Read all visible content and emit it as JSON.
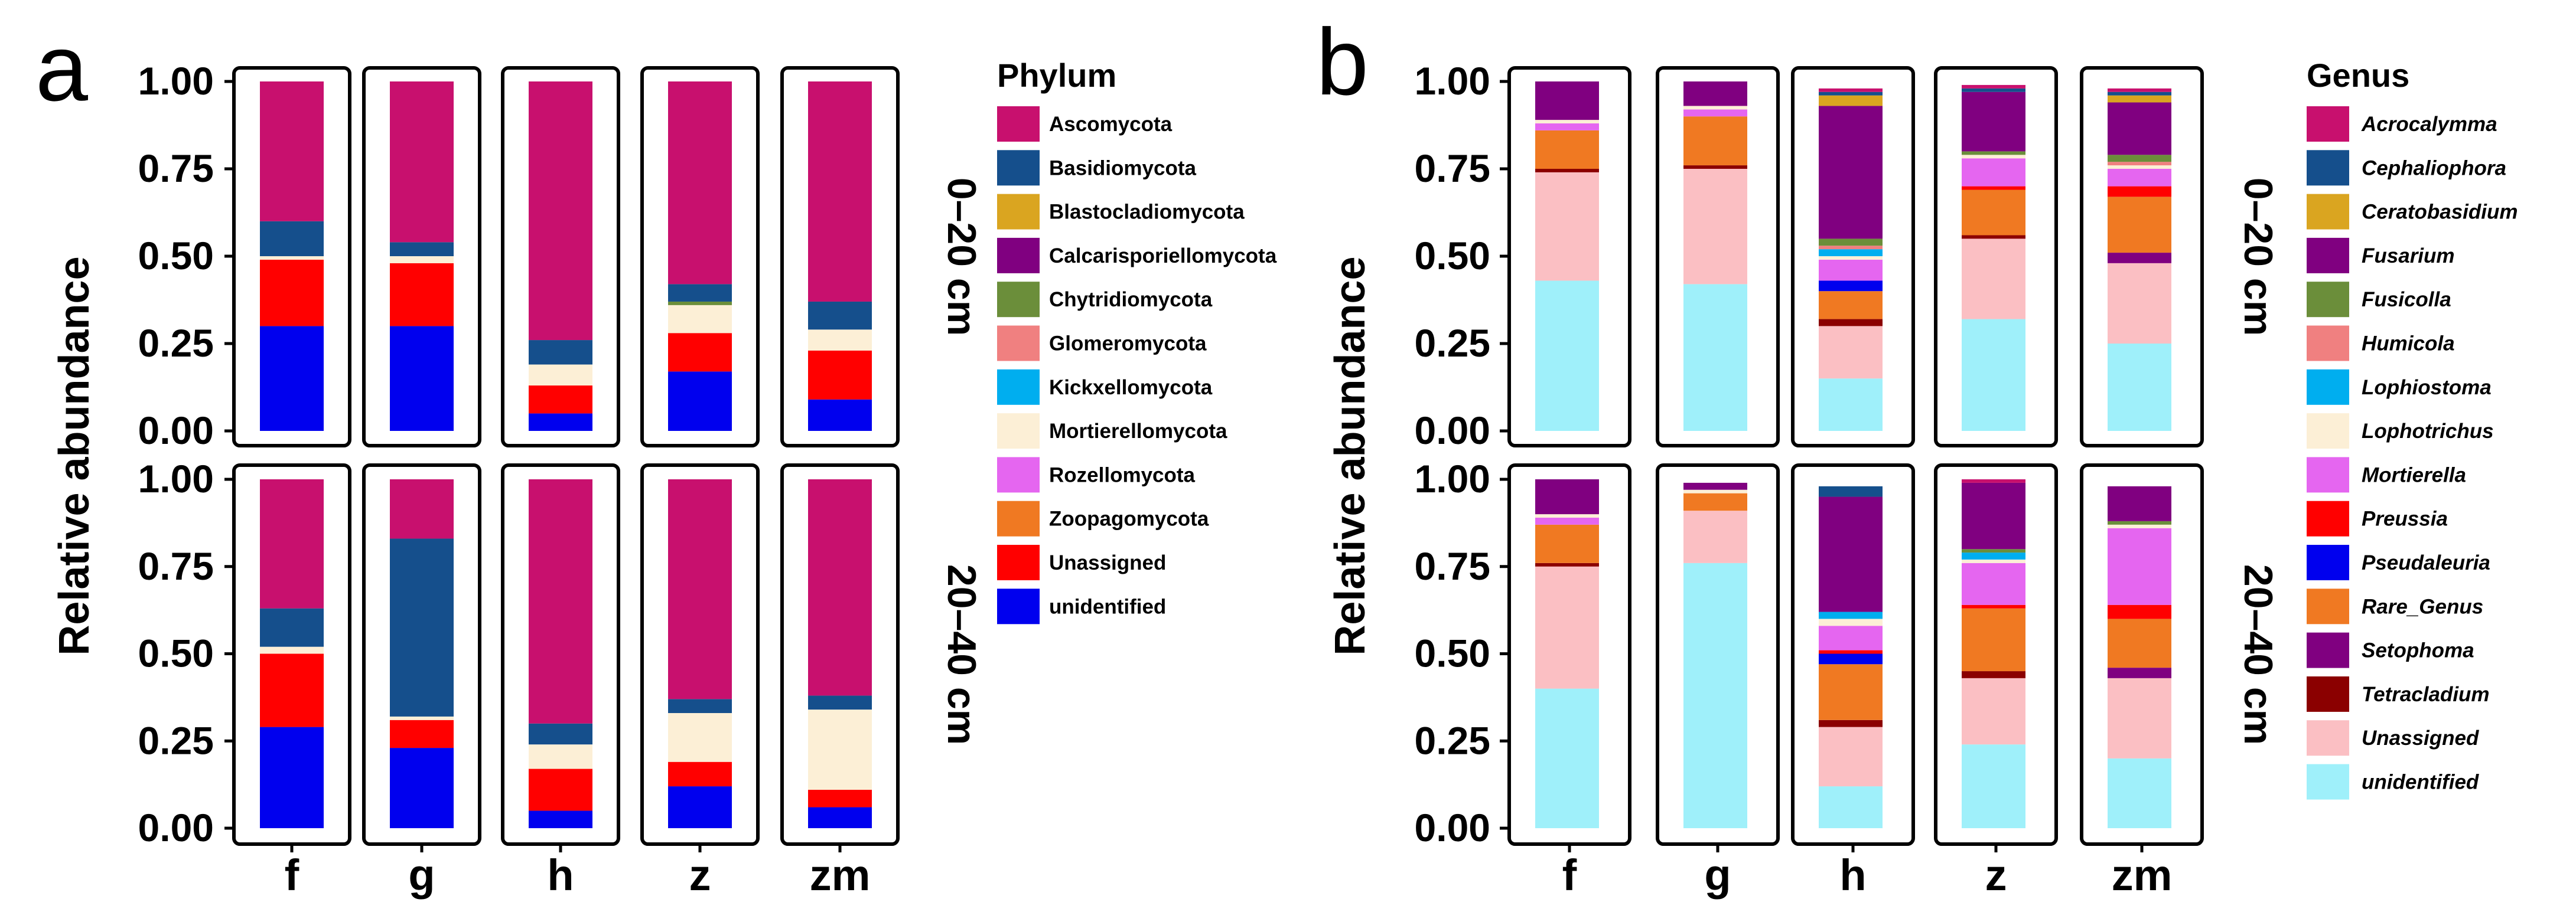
{
  "chart_data": [
    {
      "type": "bar",
      "stacked": true,
      "panel_letter": "a",
      "ylabel": "Relative abundance",
      "ylim": [
        0,
        1
      ],
      "yticks": [
        "0.00",
        "0.25",
        "0.50",
        "0.75",
        "1.00"
      ],
      "categories": [
        "f",
        "g",
        "h",
        "z",
        "zm"
      ],
      "rows": [
        "0–20 cm",
        "20–40 cm"
      ],
      "legend_title": "Phylum",
      "legend_italic": false,
      "legend_position": "right",
      "series": [
        {
          "name": "unidentified",
          "color": "#0000ee",
          "values": [
            [
              0.3,
              0.3,
              0.05,
              0.17,
              0.09
            ],
            [
              0.29,
              0.23,
              0.05,
              0.12,
              0.06
            ]
          ]
        },
        {
          "name": "Unassigned",
          "color": "#ff0000",
          "values": [
            [
              0.19,
              0.18,
              0.08,
              0.11,
              0.14
            ],
            [
              0.21,
              0.08,
              0.12,
              0.07,
              0.05
            ]
          ]
        },
        {
          "name": "Zoopagomycota",
          "color": "#f07922",
          "values": [
            [
              0,
              0,
              0,
              0,
              0
            ],
            [
              0,
              0,
              0,
              0,
              0
            ]
          ]
        },
        {
          "name": "Rozellomycota",
          "color": "#e566f0",
          "values": [
            [
              0,
              0,
              0,
              0,
              0
            ],
            [
              0,
              0,
              0,
              0,
              0
            ]
          ]
        },
        {
          "name": "Mortierellomycota",
          "color": "#fcefd6",
          "values": [
            [
              0.01,
              0.02,
              0.06,
              0.08,
              0.06
            ],
            [
              0.02,
              0.01,
              0.07,
              0.14,
              0.23
            ]
          ]
        },
        {
          "name": "Kickxellomycota",
          "color": "#00aeef",
          "values": [
            [
              0,
              0,
              0,
              0,
              0
            ],
            [
              0,
              0,
              0,
              0,
              0
            ]
          ]
        },
        {
          "name": "Glomeromycota",
          "color": "#f08080",
          "values": [
            [
              0,
              0,
              0,
              0,
              0
            ],
            [
              0,
              0,
              0,
              0,
              0
            ]
          ]
        },
        {
          "name": "Chytridiomycota",
          "color": "#6b8e3a",
          "values": [
            [
              0,
              0,
              0,
              0.01,
              0
            ],
            [
              0,
              0,
              0,
              0,
              0
            ]
          ]
        },
        {
          "name": "Calcarisporiellomycota",
          "color": "#800080",
          "values": [
            [
              0,
              0,
              0,
              0,
              0
            ],
            [
              0,
              0,
              0,
              0,
              0
            ]
          ]
        },
        {
          "name": "Blastocladiomycota",
          "color": "#daa520",
          "values": [
            [
              0,
              0,
              0,
              0,
              0
            ],
            [
              0,
              0,
              0,
              0,
              0
            ]
          ]
        },
        {
          "name": "Basidiomycota",
          "color": "#154f8c",
          "values": [
            [
              0.1,
              0.04,
              0.07,
              0.05,
              0.08
            ],
            [
              0.11,
              0.51,
              0.06,
              0.04,
              0.04
            ]
          ]
        },
        {
          "name": "Ascomycota",
          "color": "#c8106e",
          "values": [
            [
              0.4,
              0.46,
              0.74,
              0.58,
              0.63
            ],
            [
              0.37,
              0.17,
              0.7,
              0.63,
              0.62
            ]
          ]
        }
      ]
    },
    {
      "type": "bar",
      "stacked": true,
      "panel_letter": "b",
      "ylabel": "Relative abundance",
      "ylim": [
        0,
        1
      ],
      "yticks": [
        "0.00",
        "0.25",
        "0.50",
        "0.75",
        "1.00"
      ],
      "categories": [
        "f",
        "g",
        "h",
        "z",
        "zm"
      ],
      "rows": [
        "0–20 cm",
        "20–40 cm"
      ],
      "legend_title": "Genus",
      "legend_italic": true,
      "legend_position": "right",
      "series": [
        {
          "name": "unidentified",
          "color": "#9ff0fa",
          "values": [
            [
              0.43,
              0.42,
              0.15,
              0.32,
              0.25
            ],
            [
              0.4,
              0.76,
              0.12,
              0.24,
              0.2
            ]
          ]
        },
        {
          "name": "Unassigned",
          "color": "#fbbfc3",
          "values": [
            [
              0.31,
              0.33,
              0.15,
              0.23,
              0.23
            ],
            [
              0.35,
              0.15,
              0.17,
              0.19,
              0.23
            ]
          ]
        },
        {
          "name": "Tetracladium",
          "color": "#8b0000",
          "values": [
            [
              0.01,
              0.01,
              0.02,
              0.01,
              0
            ],
            [
              0.01,
              0,
              0.02,
              0.02,
              0
            ]
          ]
        },
        {
          "name": "Setophoma",
          "color": "#800080",
          "values": [
            [
              0,
              0,
              0,
              0,
              0.03
            ],
            [
              0,
              0,
              0,
              0,
              0.03
            ]
          ]
        },
        {
          "name": "Rare_Genus",
          "color": "#f07922",
          "values": [
            [
              0.11,
              0.14,
              0.08,
              0.13,
              0.16
            ],
            [
              0.11,
              0.05,
              0.16,
              0.18,
              0.14
            ]
          ]
        },
        {
          "name": "Pseudaleuria",
          "color": "#0000ee",
          "values": [
            [
              0,
              0,
              0.03,
              0,
              0
            ],
            [
              0,
              0,
              0.03,
              0,
              0
            ]
          ]
        },
        {
          "name": "Preussia",
          "color": "#ff0000",
          "values": [
            [
              0,
              0,
              0,
              0.01,
              0.03
            ],
            [
              0,
              0,
              0.01,
              0.01,
              0.04
            ]
          ]
        },
        {
          "name": "Mortierella",
          "color": "#e566f0",
          "values": [
            [
              0.02,
              0.02,
              0.06,
              0.08,
              0.05
            ],
            [
              0.02,
              0,
              0.07,
              0.12,
              0.22
            ]
          ]
        },
        {
          "name": "Lophotrichus",
          "color": "#fcefd6",
          "values": [
            [
              0.01,
              0.01,
              0.01,
              0.01,
              0.01
            ],
            [
              0.01,
              0.01,
              0.02,
              0.01,
              0.01
            ]
          ]
        },
        {
          "name": "Lophiostoma",
          "color": "#00aeef",
          "values": [
            [
              0,
              0,
              0.02,
              0,
              0
            ],
            [
              0,
              0,
              0.02,
              0.02,
              0
            ]
          ]
        },
        {
          "name": "Humicola",
          "color": "#f08080",
          "values": [
            [
              0,
              0,
              0.01,
              0,
              0.01
            ],
            [
              0,
              0,
              0,
              0,
              0
            ]
          ]
        },
        {
          "name": "Fusicolla",
          "color": "#6b8e3a",
          "values": [
            [
              0,
              0,
              0.02,
              0.01,
              0.02
            ],
            [
              0,
              0,
              0,
              0.01,
              0.01
            ]
          ]
        },
        {
          "name": "Fusarium",
          "color": "#800080",
          "values": [
            [
              0.11,
              0.07,
              0.38,
              0.17,
              0.15
            ],
            [
              0.1,
              0.02,
              0.33,
              0.19,
              0.1
            ]
          ]
        },
        {
          "name": "Ceratobasidium",
          "color": "#daa520",
          "values": [
            [
              0,
              0,
              0.03,
              0,
              0.02
            ],
            [
              0,
              0,
              0,
              0,
              0
            ]
          ]
        },
        {
          "name": "Cephaliophora",
          "color": "#154f8c",
          "values": [
            [
              0,
              0,
              0.01,
              0.01,
              0.01
            ],
            [
              0,
              0,
              0.03,
              0,
              0
            ]
          ]
        },
        {
          "name": "Acrocalymma",
          "color": "#c8106e",
          "values": [
            [
              0,
              0,
              0.01,
              0.01,
              0.01
            ],
            [
              0,
              0,
              0,
              0.01,
              0
            ]
          ]
        }
      ]
    }
  ]
}
